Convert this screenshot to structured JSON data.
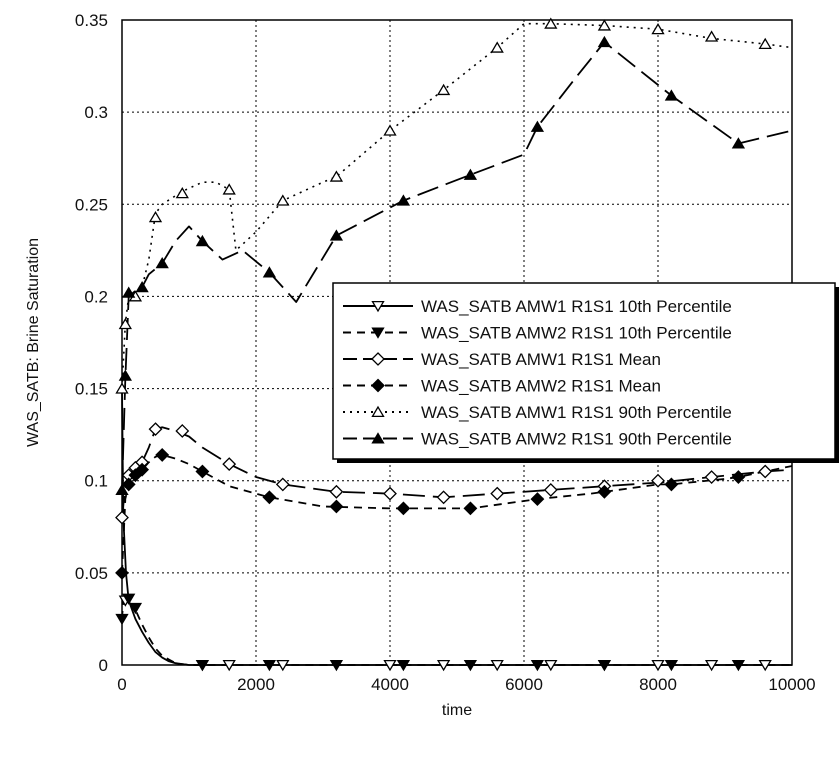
{
  "chart_data": {
    "type": "line",
    "xlabel": "time",
    "ylabel": "WAS_SATB: Brine Saturation",
    "xlim": [
      0,
      10000
    ],
    "ylim": [
      0,
      0.35
    ],
    "x_ticks": [
      0,
      2000,
      4000,
      6000,
      8000,
      10000
    ],
    "x_tick_labels": [
      "0",
      "2000",
      "4000",
      "6000",
      "8000",
      "10000"
    ],
    "y_ticks": [
      0,
      0.05,
      0.1,
      0.15,
      0.2,
      0.25,
      0.3,
      0.35
    ],
    "y_tick_labels": [
      "0",
      "0.05",
      "0.1",
      "0.15",
      "0.2",
      "0.25",
      "0.3",
      "0.35"
    ],
    "grid": true,
    "legend_position": "center-right",
    "series": [
      {
        "name": "WAS_SATB AMW1 R1S1 10th Percentile",
        "color": "#000000",
        "line_style": "solid",
        "marker": "triangle-down-open",
        "x": [
          0,
          20,
          60,
          100,
          200,
          300,
          400,
          500,
          600,
          700,
          800,
          900,
          1000,
          1200,
          1600,
          2000,
          2400,
          3000,
          4000,
          4800,
          5600,
          6400,
          7200,
          8000,
          8800,
          9600,
          10000
        ],
        "y": [
          0.15,
          0.08,
          0.05,
          0.035,
          0.025,
          0.018,
          0.012,
          0.007,
          0.004,
          0.002,
          0.001,
          0.0005,
          0,
          0,
          0,
          0,
          0,
          0,
          0,
          0,
          0,
          0,
          0,
          0,
          0,
          0,
          0
        ],
        "marker_x": [
          50,
          1200,
          1600,
          2400,
          4000,
          4800,
          5600,
          6400,
          7200,
          8000,
          8800,
          9600
        ],
        "marker_y": [
          0.035,
          0,
          0,
          0,
          0,
          0,
          0,
          0,
          0,
          0,
          0,
          0
        ]
      },
      {
        "name": "WAS_SATB AMW2 R1S1 10th Percentile",
        "color": "#000000",
        "line_style": "dash",
        "marker": "triangle-down-filled",
        "x": [
          0,
          20,
          50,
          100,
          200,
          300,
          400,
          500,
          600,
          700,
          800,
          900,
          1000,
          1400,
          2000,
          3000,
          4000,
          5000,
          6000,
          7000,
          8000,
          9000,
          10000
        ],
        "y": [
          0.025,
          0.035,
          0.037,
          0.034,
          0.03,
          0.022,
          0.015,
          0.009,
          0.005,
          0.003,
          0.001,
          0.0005,
          0,
          0,
          0,
          0,
          0,
          0,
          0,
          0,
          0,
          0,
          0
        ],
        "marker_x": [
          0,
          100,
          200,
          1200,
          2200,
          3200,
          4200,
          5200,
          6200,
          7200,
          8200,
          9200
        ],
        "marker_y": [
          0.025,
          0.036,
          0.031,
          0,
          0,
          0,
          0,
          0,
          0,
          0,
          0,
          0
        ]
      },
      {
        "name": "WAS_SATB AMW1 R1S1 Mean",
        "color": "#000000",
        "line_style": "longdash",
        "marker": "diamond-open",
        "x": [
          0,
          50,
          100,
          200,
          300,
          400,
          500,
          600,
          800,
          1000,
          1200,
          1600,
          2000,
          2400,
          3200,
          4000,
          4800,
          5600,
          6400,
          7200,
          8000,
          8800,
          9600,
          10000
        ],
        "y": [
          0.08,
          0.097,
          0.103,
          0.107,
          0.11,
          0.118,
          0.128,
          0.129,
          0.127,
          0.124,
          0.118,
          0.109,
          0.102,
          0.098,
          0.094,
          0.093,
          0.091,
          0.093,
          0.095,
          0.097,
          0.099,
          0.102,
          0.105,
          0.106
        ],
        "marker_x": [
          0,
          100,
          200,
          300,
          500,
          900,
          1600,
          2400,
          3200,
          4000,
          4800,
          5600,
          6400,
          7200,
          8000,
          8800,
          9600
        ],
        "marker_y": [
          0.08,
          0.103,
          0.107,
          0.11,
          0.128,
          0.127,
          0.109,
          0.098,
          0.094,
          0.093,
          0.091,
          0.093,
          0.095,
          0.097,
          0.1,
          0.102,
          0.105
        ]
      },
      {
        "name": "WAS_SATB AMW2 R1S1 Mean",
        "color": "#000000",
        "line_style": "dash",
        "marker": "diamond-filled",
        "x": [
          0,
          50,
          100,
          200,
          300,
          400,
          500,
          600,
          800,
          1000,
          1200,
          1600,
          2000,
          2200,
          3000,
          4000,
          4200,
          5000,
          5200,
          6000,
          6200,
          7000,
          7200,
          8000,
          8200,
          9000,
          9200,
          10000
        ],
        "y": [
          0.05,
          0.09,
          0.098,
          0.103,
          0.106,
          0.11,
          0.113,
          0.114,
          0.112,
          0.109,
          0.105,
          0.097,
          0.093,
          0.091,
          0.086,
          0.085,
          0.085,
          0.085,
          0.085,
          0.089,
          0.09,
          0.093,
          0.094,
          0.098,
          0.098,
          0.101,
          0.102,
          0.108
        ],
        "marker_x": [
          0,
          100,
          200,
          300,
          600,
          1200,
          2200,
          3200,
          4200,
          5200,
          6200,
          7200,
          8200,
          9200
        ],
        "marker_y": [
          0.05,
          0.098,
          0.103,
          0.106,
          0.114,
          0.105,
          0.091,
          0.086,
          0.085,
          0.085,
          0.09,
          0.094,
          0.098,
          0.102
        ]
      },
      {
        "name": "WAS_SATB AMW1 R1S1 90th Percentile",
        "color": "#000000",
        "line_style": "dot",
        "marker": "triangle-up-open",
        "x": [
          0,
          50,
          100,
          200,
          300,
          400,
          500,
          600,
          900,
          1200,
          1400,
          1600,
          1700,
          2000,
          2400,
          3000,
          3200,
          4000,
          4800,
          5600,
          6000,
          6400,
          7200,
          8000,
          8800,
          9600,
          10000
        ],
        "y": [
          0.15,
          0.185,
          0.2,
          0.2,
          0.205,
          0.22,
          0.245,
          0.25,
          0.257,
          0.262,
          0.262,
          0.258,
          0.225,
          0.235,
          0.252,
          0.262,
          0.265,
          0.29,
          0.312,
          0.335,
          0.348,
          0.348,
          0.347,
          0.345,
          0.34,
          0.337,
          0.335
        ],
        "marker_x": [
          0,
          50,
          200,
          500,
          900,
          1600,
          2400,
          3200,
          4000,
          4800,
          5600,
          6400,
          7200,
          8000,
          8800,
          9600
        ],
        "marker_y": [
          0.15,
          0.185,
          0.2,
          0.243,
          0.256,
          0.258,
          0.252,
          0.265,
          0.29,
          0.312,
          0.335,
          0.348,
          0.347,
          0.345,
          0.341,
          0.337
        ]
      },
      {
        "name": "WAS_SATB AMW2 R1S1 90th Percentile",
        "color": "#000000",
        "line_style": "longdash",
        "marker": "triangle-up-filled",
        "x": [
          0,
          50,
          100,
          200,
          300,
          400,
          600,
          800,
          1000,
          1200,
          1500,
          1800,
          2200,
          2600,
          3200,
          4200,
          5200,
          6000,
          6200,
          6800,
          7200,
          8200,
          9200,
          10000
        ],
        "y": [
          0.095,
          0.155,
          0.2,
          0.203,
          0.205,
          0.212,
          0.218,
          0.23,
          0.238,
          0.23,
          0.22,
          0.225,
          0.213,
          0.197,
          0.233,
          0.252,
          0.266,
          0.277,
          0.292,
          0.32,
          0.338,
          0.309,
          0.283,
          0.29
        ],
        "marker_x": [
          0,
          50,
          100,
          300,
          600,
          1200,
          2200,
          3200,
          4200,
          5200,
          6200,
          7200,
          8200,
          9200
        ],
        "marker_y": [
          0.095,
          0.157,
          0.202,
          0.205,
          0.218,
          0.23,
          0.213,
          0.233,
          0.252,
          0.266,
          0.292,
          0.338,
          0.309,
          0.283
        ]
      }
    ]
  }
}
